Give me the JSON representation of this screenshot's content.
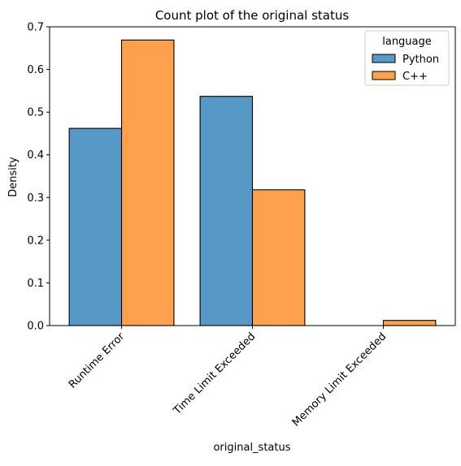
{
  "chart_data": {
    "type": "bar",
    "title": "Count plot of the original status",
    "xlabel": "original_status",
    "ylabel": "Density",
    "categories": [
      "Runtime Error",
      "Time Limit Exceeded",
      "Memory Limit Exceeded"
    ],
    "series": [
      {
        "name": "Python",
        "values": [
          0.462,
          0.537,
          0.0
        ],
        "color": "#5698c6"
      },
      {
        "name": "C++",
        "values": [
          0.669,
          0.318,
          0.012
        ],
        "color": "#ffa04c"
      }
    ],
    "ylim": [
      0,
      0.7
    ],
    "yticks": [
      "0.0",
      "0.1",
      "0.2",
      "0.3",
      "0.4",
      "0.5",
      "0.6",
      "0.7"
    ],
    "xtick_rotation": 45,
    "grid": false,
    "legend": {
      "title": "language",
      "position": "top-right"
    }
  }
}
